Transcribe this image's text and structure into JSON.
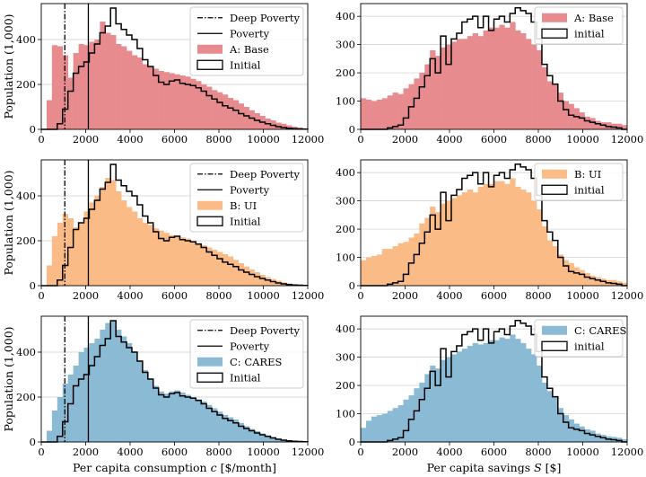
{
  "colors": {
    "base": "#e88b8f",
    "ui": "#fbbb86",
    "cares": "#8bbad5",
    "initial": "#000000",
    "grid": "#cccccc"
  },
  "chart_data": [
    {
      "id": "A-consumption",
      "type": "histogram",
      "xlabel": "",
      "ylabel": "Population (1,000)",
      "xlim": [
        0,
        12000
      ],
      "ylim": [
        0,
        560
      ],
      "xticks": [
        "0",
        "2000",
        "4000",
        "6000",
        "8000",
        "10000",
        "12000"
      ],
      "yticks": [
        "0",
        "200",
        "400"
      ],
      "bin_start": 0,
      "bin_width": 240,
      "vlines": [
        {
          "name": "Deep Poverty",
          "x": 1060,
          "style": "dashdot"
        },
        {
          "name": "Poverty",
          "x": 2120,
          "style": "solid"
        }
      ],
      "legend": [
        "Deep Poverty",
        "Poverty",
        "A: Base",
        "Initial"
      ],
      "legend_position": "top-right",
      "series": [
        {
          "name": "A: Base",
          "style": "fill",
          "color": "base",
          "values": [
            0,
            130,
            375,
            370,
            330,
            230,
            340,
            380,
            375,
            390,
            400,
            480,
            430,
            420,
            380,
            370,
            350,
            330,
            320,
            290,
            280,
            270,
            260,
            255,
            250,
            245,
            240,
            235,
            225,
            215,
            200,
            190,
            175,
            165,
            155,
            140,
            130,
            115,
            100,
            85,
            72,
            60,
            48,
            40,
            30,
            25,
            18,
            12,
            8,
            5
          ]
        },
        {
          "name": "Initial",
          "style": "step",
          "color": "initial",
          "values": [
            0,
            0,
            0,
            25,
            90,
            170,
            250,
            280,
            300,
            340,
            380,
            430,
            460,
            540,
            470,
            445,
            420,
            400,
            360,
            310,
            280,
            240,
            210,
            200,
            215,
            220,
            205,
            200,
            195,
            185,
            170,
            150,
            135,
            120,
            105,
            95,
            85,
            70,
            60,
            50,
            40,
            32,
            25,
            18,
            12,
            8,
            5,
            3,
            2,
            1
          ]
        }
      ]
    },
    {
      "id": "A-savings",
      "type": "histogram",
      "xlabel": "",
      "ylabel": "",
      "xlim": [
        0,
        12000
      ],
      "ylim": [
        0,
        445
      ],
      "xticks": [
        "0",
        "2000",
        "4000",
        "6000",
        "8000",
        "10000",
        "12000"
      ],
      "yticks": [
        "0",
        "100",
        "200",
        "300",
        "400"
      ],
      "bin_start": 0,
      "bin_width": 240,
      "vlines": [],
      "legend": [
        "A: Base",
        "initial"
      ],
      "legend_position": "top-right",
      "series": [
        {
          "name": "A: Base",
          "style": "fill",
          "color": "base",
          "values": [
            110,
            105,
            100,
            105,
            110,
            120,
            130,
            125,
            145,
            160,
            180,
            200,
            230,
            280,
            260,
            290,
            300,
            310,
            320,
            320,
            330,
            340,
            330,
            350,
            360,
            360,
            370,
            360,
            380,
            350,
            340,
            320,
            300,
            280,
            220,
            170,
            160,
            130,
            100,
            90,
            75,
            60,
            45,
            40,
            30,
            25,
            25,
            20,
            20,
            15
          ]
        },
        {
          "name": "initial",
          "style": "step",
          "color": "initial",
          "values": [
            0,
            0,
            0,
            0,
            0,
            5,
            10,
            15,
            40,
            80,
            110,
            150,
            190,
            250,
            200,
            330,
            230,
            320,
            340,
            380,
            390,
            400,
            360,
            400,
            350,
            390,
            400,
            380,
            410,
            430,
            420,
            410,
            380,
            320,
            230,
            190,
            160,
            100,
            70,
            50,
            45,
            40,
            30,
            25,
            20,
            15,
            10,
            8,
            5,
            0
          ]
        }
      ]
    },
    {
      "id": "B-consumption",
      "type": "histogram",
      "xlabel": "",
      "ylabel": "Population (1,000)",
      "xlim": [
        0,
        12000
      ],
      "ylim": [
        0,
        560
      ],
      "xticks": [
        "0",
        "2000",
        "4000",
        "6000",
        "8000",
        "10000",
        "12000"
      ],
      "yticks": [
        "0",
        "200",
        "400"
      ],
      "bin_start": 0,
      "bin_width": 240,
      "vlines": [
        {
          "name": "Deep Poverty",
          "x": 1060,
          "style": "dashdot"
        },
        {
          "name": "Poverty",
          "x": 2120,
          "style": "solid"
        }
      ],
      "legend": [
        "Deep Poverty",
        "Poverty",
        "B: UI",
        "Initial"
      ],
      "legend_position": "top-right",
      "series": [
        {
          "name": "B: UI",
          "style": "fill",
          "color": "ui",
          "values": [
            0,
            90,
            220,
            280,
            320,
            300,
            260,
            280,
            330,
            370,
            400,
            440,
            480,
            470,
            420,
            380,
            350,
            330,
            300,
            280,
            270,
            255,
            245,
            235,
            225,
            220,
            215,
            210,
            200,
            190,
            180,
            170,
            160,
            150,
            140,
            130,
            115,
            100,
            85,
            72,
            60,
            48,
            38,
            30,
            22,
            15,
            10,
            6,
            4,
            2
          ]
        },
        {
          "name": "Initial",
          "style": "step",
          "color": "initial",
          "values": [
            0,
            0,
            0,
            25,
            90,
            170,
            250,
            280,
            300,
            340,
            380,
            430,
            460,
            540,
            470,
            445,
            420,
            400,
            360,
            310,
            280,
            240,
            210,
            200,
            215,
            220,
            205,
            200,
            195,
            185,
            170,
            150,
            135,
            120,
            105,
            95,
            85,
            70,
            60,
            50,
            40,
            32,
            25,
            18,
            12,
            8,
            5,
            3,
            2,
            1
          ]
        }
      ]
    },
    {
      "id": "B-savings",
      "type": "histogram",
      "xlabel": "",
      "ylabel": "",
      "xlim": [
        0,
        12000
      ],
      "ylim": [
        0,
        445
      ],
      "xticks": [
        "0",
        "2000",
        "4000",
        "6000",
        "8000",
        "10000",
        "12000"
      ],
      "yticks": [
        "0",
        "100",
        "200",
        "300",
        "400"
      ],
      "bin_start": 0,
      "bin_width": 240,
      "vlines": [],
      "legend": [
        "B: UI",
        "initial"
      ],
      "legend_position": "top-right",
      "series": [
        {
          "name": "B: UI",
          "style": "fill",
          "color": "ui",
          "values": [
            90,
            100,
            105,
            110,
            130,
            130,
            140,
            150,
            155,
            170,
            185,
            220,
            240,
            280,
            260,
            290,
            300,
            310,
            320,
            330,
            340,
            330,
            350,
            360,
            360,
            370,
            370,
            360,
            380,
            350,
            340,
            330,
            300,
            270,
            210,
            160,
            140,
            110,
            90,
            80,
            65,
            55,
            45,
            35,
            30,
            25,
            20,
            20,
            15,
            10
          ]
        },
        {
          "name": "initial",
          "style": "step",
          "color": "initial",
          "values": [
            0,
            0,
            0,
            0,
            0,
            5,
            10,
            15,
            40,
            80,
            110,
            150,
            190,
            250,
            200,
            330,
            230,
            320,
            340,
            380,
            390,
            400,
            360,
            400,
            350,
            390,
            400,
            380,
            410,
            430,
            420,
            410,
            380,
            320,
            230,
            190,
            160,
            100,
            70,
            50,
            45,
            40,
            30,
            25,
            20,
            15,
            10,
            8,
            5,
            0
          ]
        }
      ]
    },
    {
      "id": "C-consumption",
      "type": "histogram",
      "xlabel": "Per capita consumption c [$/month]",
      "ylabel": "Population (1,000)",
      "xlim": [
        0,
        12000
      ],
      "ylim": [
        0,
        560
      ],
      "xticks": [
        "0",
        "2000",
        "4000",
        "6000",
        "8000",
        "10000",
        "12000"
      ],
      "yticks": [
        "0",
        "200",
        "400"
      ],
      "bin_start": 0,
      "bin_width": 240,
      "vlines": [
        {
          "name": "Deep Poverty",
          "x": 1060,
          "style": "dashdot"
        },
        {
          "name": "Poverty",
          "x": 2120,
          "style": "solid"
        }
      ],
      "legend": [
        "Deep Poverty",
        "Poverty",
        "C: CARES",
        "Initial"
      ],
      "legend_position": "top-right",
      "series": [
        {
          "name": "C: CARES",
          "style": "fill",
          "color": "cares",
          "values": [
            0,
            50,
            140,
            200,
            260,
            300,
            340,
            400,
            420,
            440,
            460,
            500,
            530,
            540,
            500,
            470,
            440,
            400,
            360,
            320,
            280,
            250,
            225,
            215,
            225,
            230,
            220,
            210,
            200,
            190,
            180,
            165,
            150,
            135,
            120,
            110,
            100,
            85,
            70,
            58,
            48,
            38,
            30,
            22,
            15,
            10,
            7,
            5,
            3,
            2
          ]
        },
        {
          "name": "Initial",
          "style": "step",
          "color": "initial",
          "values": [
            0,
            0,
            0,
            25,
            90,
            170,
            250,
            280,
            300,
            340,
            380,
            430,
            460,
            540,
            470,
            445,
            420,
            400,
            360,
            310,
            280,
            240,
            210,
            200,
            215,
            220,
            205,
            200,
            195,
            185,
            170,
            150,
            135,
            120,
            105,
            95,
            85,
            70,
            60,
            50,
            40,
            32,
            25,
            18,
            12,
            8,
            5,
            3,
            2,
            1
          ]
        }
      ]
    },
    {
      "id": "C-savings",
      "type": "histogram",
      "xlabel": "Per capita savings S [$]",
      "ylabel": "",
      "xlim": [
        0,
        12000
      ],
      "ylim": [
        0,
        445
      ],
      "xticks": [
        "0",
        "2000",
        "4000",
        "6000",
        "8000",
        "10000",
        "12000"
      ],
      "yticks": [
        "0",
        "100",
        "200",
        "300",
        "400"
      ],
      "bin_start": 0,
      "bin_width": 240,
      "vlines": [],
      "legend": [
        "C: CARES",
        "initial"
      ],
      "legend_position": "top-right",
      "series": [
        {
          "name": "C: CARES",
          "style": "fill",
          "color": "cares",
          "values": [
            50,
            75,
            90,
            95,
            100,
            110,
            120,
            130,
            150,
            165,
            190,
            210,
            240,
            270,
            260,
            290,
            300,
            310,
            320,
            330,
            340,
            350,
            345,
            350,
            360,
            360,
            370,
            365,
            380,
            365,
            350,
            330,
            310,
            270,
            210,
            180,
            160,
            120,
            95,
            80,
            65,
            55,
            45,
            40,
            30,
            25,
            20,
            18,
            15,
            10
          ]
        },
        {
          "name": "initial",
          "style": "step",
          "color": "initial",
          "values": [
            0,
            0,
            0,
            0,
            0,
            5,
            10,
            15,
            40,
            80,
            110,
            150,
            190,
            250,
            200,
            330,
            230,
            320,
            340,
            380,
            390,
            400,
            360,
            400,
            350,
            390,
            400,
            380,
            410,
            430,
            420,
            410,
            380,
            320,
            230,
            190,
            160,
            100,
            70,
            50,
            45,
            40,
            30,
            25,
            20,
            15,
            10,
            8,
            5,
            0
          ]
        }
      ]
    }
  ]
}
